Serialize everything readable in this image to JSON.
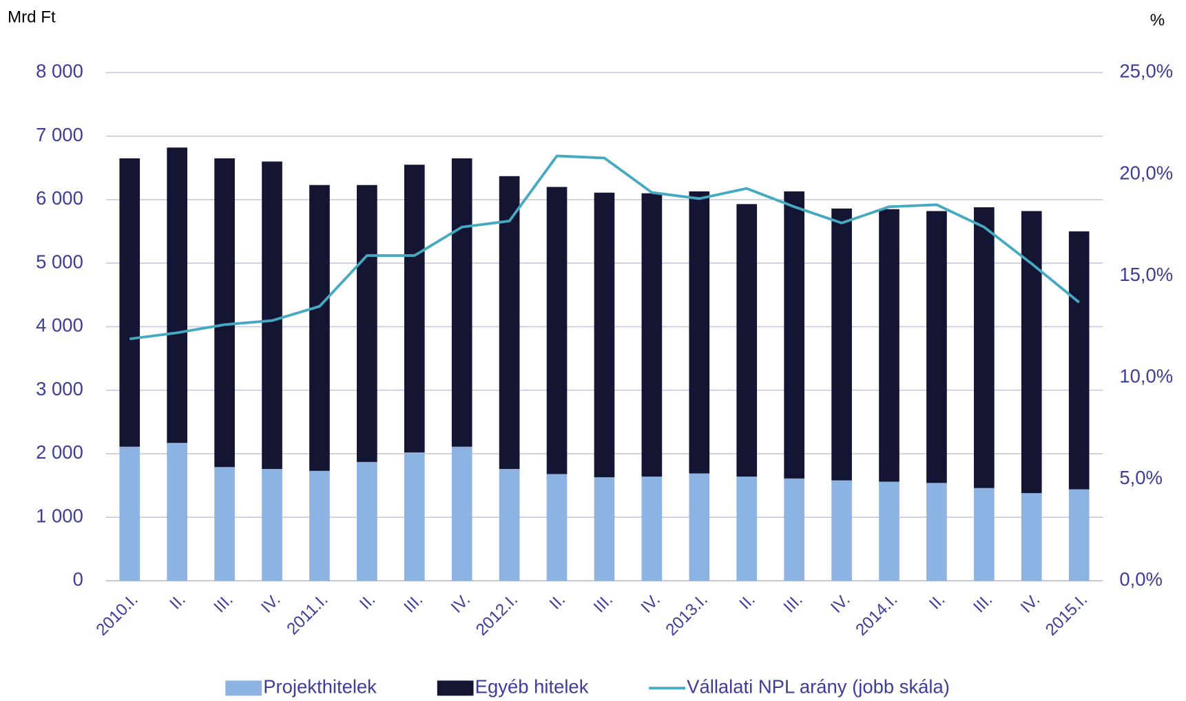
{
  "chart_data": {
    "type": "bar",
    "stacked": true,
    "ylabel": "Mrd Ft",
    "y2label": "%",
    "categories": [
      "2010.I.",
      "II.",
      "III.",
      "IV.",
      "2011.I.",
      "II.",
      "III.",
      "IV.",
      "2012.I.",
      "II.",
      "III.",
      "IV.",
      "2013.I.",
      "II.",
      "III.",
      "IV.",
      "2014.I.",
      "II.",
      "III.",
      "IV.",
      "2015.I."
    ],
    "series": [
      {
        "name": "Projekthitelek",
        "type": "bar",
        "color": "#8db3e2",
        "values": [
          2110,
          2170,
          1790,
          1760,
          1730,
          1870,
          2020,
          2110,
          1760,
          1680,
          1630,
          1640,
          1690,
          1640,
          1610,
          1580,
          1560,
          1540,
          1460,
          1380,
          1440
        ]
      },
      {
        "name": "Egyéb hitelek",
        "type": "bar",
        "color": "#141433",
        "values": [
          4540,
          4650,
          4860,
          4840,
          4500,
          4360,
          4530,
          4540,
          4610,
          4520,
          4480,
          4460,
          4440,
          4290,
          4520,
          4280,
          4290,
          4280,
          4420,
          4440,
          4060
        ]
      },
      {
        "name": "Vállalati NPL arány (jobb skála)",
        "type": "line",
        "axis": "y2",
        "color": "#45a9c1",
        "values": [
          11.9,
          12.2,
          12.6,
          12.8,
          13.5,
          16.0,
          16.0,
          17.4,
          17.7,
          20.9,
          20.8,
          19.1,
          18.8,
          19.3,
          18.4,
          17.6,
          18.4,
          18.5,
          17.4,
          15.6,
          13.7
        ]
      }
    ],
    "ylim": [
      0,
      8000
    ],
    "yticks": [
      0,
      {
        "value": 1000,
        "label": "1 000"
      },
      {
        "value": 2000,
        "label": "2 000"
      },
      {
        "value": 3000,
        "label": "3 000"
      },
      {
        "value": 4000,
        "label": "4 000"
      },
      {
        "value": 5000,
        "label": "5 000"
      },
      {
        "value": 6000,
        "label": "6 000"
      },
      {
        "value": 7000,
        "label": "7 000"
      },
      {
        "value": 8000,
        "label": "8 000"
      }
    ],
    "y2lim": [
      0,
      25
    ],
    "y2ticks": [
      {
        "value": 0,
        "label": "0,0%"
      },
      {
        "value": 5,
        "label": "5,0%"
      },
      {
        "value": 10,
        "label": "10,0%"
      },
      {
        "value": 15,
        "label": "15,0%"
      },
      {
        "value": 20,
        "label": "20,0%"
      },
      {
        "value": 25,
        "label": "25,0%"
      }
    ],
    "grid": true,
    "legend": "bottom"
  }
}
